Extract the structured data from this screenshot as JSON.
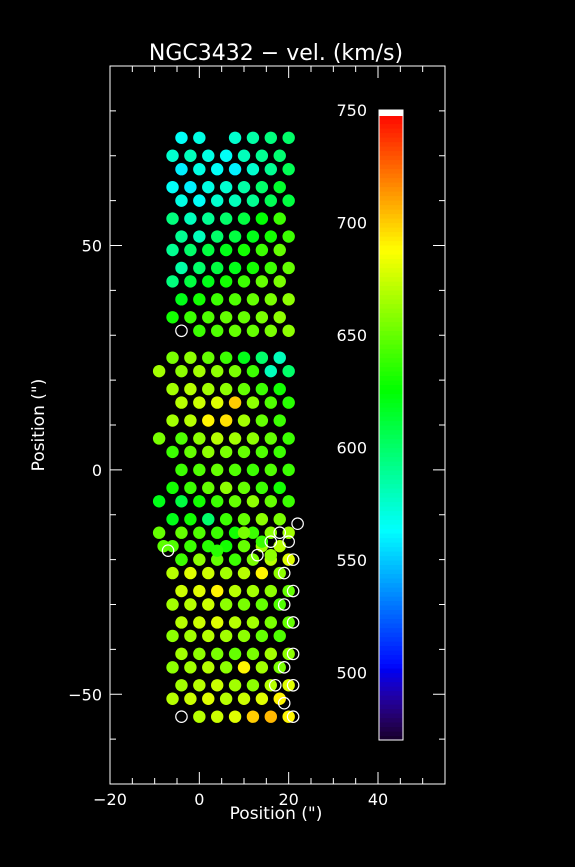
{
  "chart_data": {
    "type": "scatter",
    "title": "NGC3432 − vel. (km/s)",
    "xlabel": "Position (\")",
    "ylabel": "Position (\")",
    "xlim": [
      -20,
      55
    ],
    "ylim": [
      -70,
      90
    ],
    "xticks": [
      -20,
      0,
      20,
      40
    ],
    "yticks": [
      -50,
      0,
      50
    ],
    "xtick_labels": [
      "−20",
      "0",
      "20",
      "40"
    ],
    "ytick_labels": [
      "−50",
      "0",
      "50"
    ],
    "colorbar": {
      "label": "vel. (km/s)",
      "min": 470,
      "max": 750,
      "ticks": [
        500,
        550,
        600,
        650,
        700,
        750
      ],
      "tick_labels": [
        "500",
        "550",
        "600",
        "650",
        "700",
        "750"
      ]
    },
    "fiber_rows": [
      {
        "y": 74,
        "vals": [
          565,
          570,
          null,
          575,
          585,
          595,
          600
        ]
      },
      {
        "y": 70,
        "vals": [
          575,
          580,
          570,
          565,
          580,
          590,
          598
        ]
      },
      {
        "y": 67,
        "vals": [
          560,
          570,
          565,
          560,
          575,
          590,
          605
        ]
      },
      {
        "y": 63,
        "vals": [
          565,
          560,
          570,
          575,
          585,
          600,
          615
        ]
      },
      {
        "y": 60,
        "vals": [
          570,
          565,
          575,
          580,
          590,
          605,
          610
        ]
      },
      {
        "y": 56,
        "vals": [
          595,
          580,
          590,
          600,
          610,
          625,
          640
        ]
      },
      {
        "y": 52,
        "vals": [
          590,
          580,
          600,
          610,
          620,
          630,
          640
        ]
      },
      {
        "y": 49,
        "vals": [
          590,
          600,
          610,
          620,
          630,
          640,
          650
        ]
      },
      {
        "y": 45,
        "vals": [
          585,
          600,
          610,
          620,
          630,
          640,
          650
        ]
      },
      {
        "y": 42,
        "vals": [
          595,
          610,
          620,
          630,
          640,
          650,
          655
        ]
      },
      {
        "y": 38,
        "vals": [
          620,
          630,
          640,
          645,
          650,
          655,
          660
        ]
      },
      {
        "y": 34,
        "vals": [
          630,
          640,
          645,
          650,
          650,
          655,
          660
        ]
      },
      {
        "y": 31,
        "vals": [
          null,
          640,
          645,
          650,
          650,
          655,
          660
        ]
      },
      {
        "y": 25,
        "vals": [
          655,
          660,
          650,
          640,
          620,
          600,
          580
        ]
      },
      {
        "y": 22,
        "vals": [
          660,
          665,
          660,
          655,
          640,
          580,
          600
        ]
      },
      {
        "y": 18,
        "vals": [
          665,
          670,
          665,
          660,
          650,
          640,
          630
        ]
      },
      {
        "y": 15,
        "vals": [
          670,
          675,
          680,
          700,
          660,
          645,
          635
        ]
      },
      {
        "y": 11,
        "vals": [
          665,
          670,
          690,
          695,
          665,
          650,
          640
        ]
      },
      {
        "y": 7,
        "vals": [
          645,
          660,
          670,
          665,
          660,
          650,
          640
        ]
      },
      {
        "y": 4,
        "vals": [
          640,
          650,
          660,
          655,
          650,
          645,
          640
        ]
      },
      {
        "y": 0,
        "vals": [
          640,
          645,
          650,
          645,
          640,
          645,
          640
        ]
      },
      {
        "y": -4,
        "vals": [
          630,
          640,
          650,
          660,
          650,
          640,
          630
        ]
      },
      {
        "y": -7,
        "vals": [
          610,
          630,
          640,
          650,
          660,
          650,
          640
        ]
      },
      {
        "y": -11,
        "vals": [
          620,
          630,
          600,
          640,
          650,
          660,
          655
        ]
      },
      {
        "y": -14,
        "vals": [
          650,
          645,
          640,
          630,
          640,
          660,
          665
        ]
      },
      {
        "y": -17,
        "vals": [
          645,
          640,
          635,
          630,
          650,
          665,
          670
        ]
      },
      {
        "y": -20,
        "vals": [
          665,
          660,
          650,
          640,
          655,
          670,
          680
        ]
      },
      {
        "y": -23,
        "vals": [
          670,
          680,
          675,
          665,
          670,
          690,
          660
        ]
      },
      {
        "y": -27,
        "vals": [
          675,
          680,
          690,
          670,
          665,
          660,
          650
        ]
      },
      {
        "y": -30,
        "vals": [
          665,
          670,
          675,
          660,
          655,
          650,
          645
        ]
      },
      {
        "y": -34,
        "vals": [
          670,
          675,
          680,
          670,
          665,
          655,
          650
        ]
      },
      {
        "y": -37,
        "vals": [
          660,
          665,
          670,
          665,
          660,
          650,
          645
        ]
      },
      {
        "y": -41,
        "vals": [
          665,
          660,
          655,
          650,
          655,
          665,
          660
        ]
      },
      {
        "y": -44,
        "vals": [
          660,
          665,
          670,
          660,
          690,
          665,
          655
        ]
      },
      {
        "y": -48,
        "vals": [
          665,
          670,
          675,
          665,
          660,
          670,
          680
        ]
      },
      {
        "y": -51,
        "vals": [
          670,
          675,
          680,
          670,
          675,
          680,
          690
        ]
      },
      {
        "y": -55,
        "vals": [
          null,
          670,
          675,
          680,
          700,
          705,
          690
        ]
      }
    ],
    "fiber_cols_even": [
      -4,
      0,
      4,
      8,
      12,
      16,
      20
    ],
    "fiber_cols_odd": [
      -6,
      -2,
      2,
      6,
      10,
      14,
      18
    ],
    "extra_fibers": [
      {
        "x": -9,
        "y": 22,
        "v": 665
      },
      {
        "x": -9,
        "y": 7,
        "v": 655
      },
      {
        "x": -9,
        "y": -7,
        "v": 620
      },
      {
        "x": -9,
        "y": -14,
        "v": 650
      },
      {
        "x": -8,
        "y": -17,
        "v": 648
      },
      {
        "x": -4,
        "y": -20,
        "v": 640
      },
      {
        "x": 4,
        "y": -18,
        "v": 635
      },
      {
        "x": 10,
        "y": -14,
        "v": 655
      },
      {
        "x": 14,
        "y": -16,
        "v": 640
      },
      {
        "x": 16,
        "y": -19,
        "v": 660
      }
    ],
    "empty_fibers": [
      {
        "x": -4,
        "y": 31
      },
      {
        "x": 22,
        "y": -12
      },
      {
        "x": 18,
        "y": -14
      },
      {
        "x": 16,
        "y": -16
      },
      {
        "x": 20,
        "y": -16
      },
      {
        "x": -7,
        "y": -18
      },
      {
        "x": 13,
        "y": -19
      },
      {
        "x": 21,
        "y": -20
      },
      {
        "x": 19,
        "y": -23
      },
      {
        "x": 21,
        "y": -27
      },
      {
        "x": 19,
        "y": -30
      },
      {
        "x": 21,
        "y": -34
      },
      {
        "x": 21,
        "y": -41
      },
      {
        "x": 19,
        "y": -44
      },
      {
        "x": 17,
        "y": -48
      },
      {
        "x": 21,
        "y": -48
      },
      {
        "x": 19,
        "y": -52
      },
      {
        "x": -4,
        "y": -55
      },
      {
        "x": 21,
        "y": -55
      }
    ]
  }
}
